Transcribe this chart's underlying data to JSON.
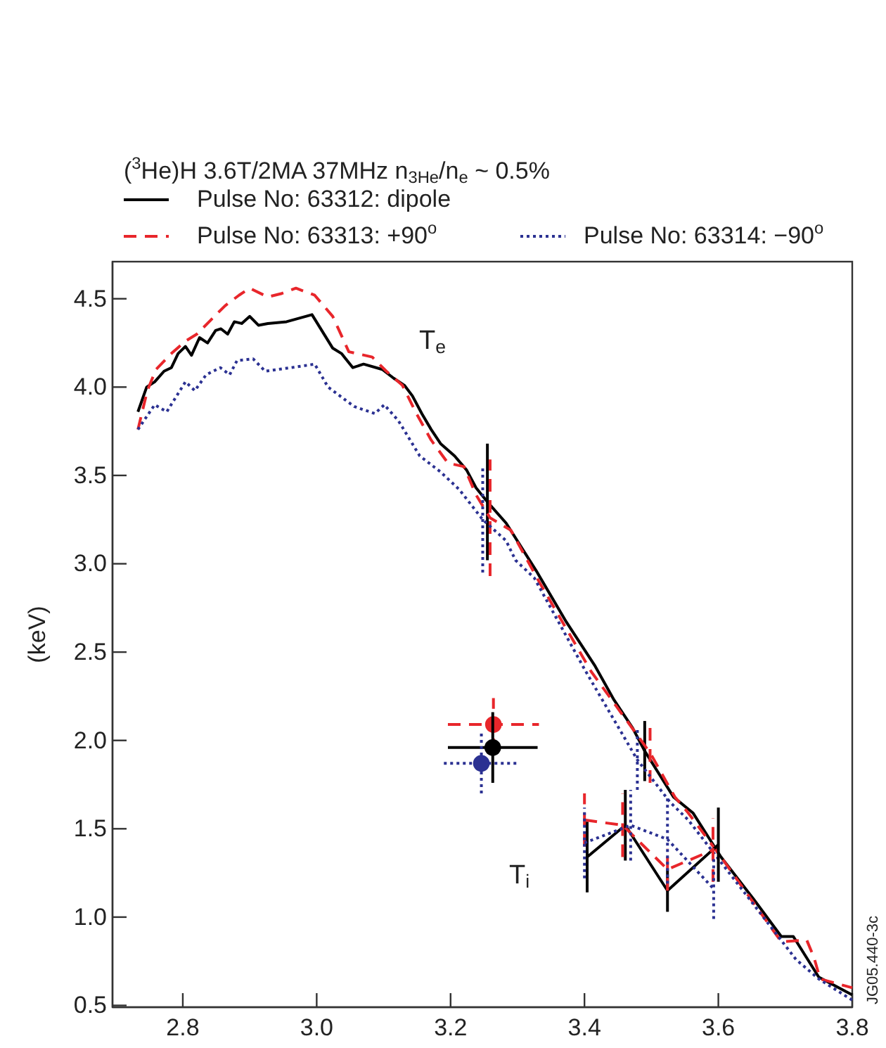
{
  "chart_data": {
    "type": "line",
    "title": "($^{3}$He)H 3.6T/2MA 37MHz n$_{3He}$/n$_{e}$ ~ 0.5%",
    "ylabel": "(keV)",
    "legend": "top",
    "xlim": [
      2.695,
      3.8
    ],
    "ylim": [
      0.49,
      4.71
    ],
    "xticks": [
      2.8,
      {
        "value": 3,
        "label": "3.0"
      },
      3.2,
      3.4,
      3.6,
      3.8
    ],
    "yticks": [
      0.5,
      {
        "value": 1,
        "label": "1.0"
      },
      1.5,
      {
        "value": 2,
        "label": "2.0"
      },
      2.5,
      {
        "value": 3,
        "label": "3.0"
      },
      3.5,
      {
        "value": 4,
        "label": "4.0"
      },
      4.5
    ],
    "annotations": [
      "T$_{e}$",
      "T$_{i}$",
      "JG05.440-3c"
    ],
    "series": [
      {
        "name": "Pulse No: 63312: dipole",
        "color": "#000000",
        "line_style": "solid",
        "x": [
          2.733,
          2.746,
          2.758,
          2.772,
          2.783,
          2.793,
          2.804,
          2.813,
          2.825,
          2.837,
          2.849,
          2.857,
          2.867,
          2.877,
          2.888,
          2.9,
          2.913,
          2.927,
          2.955,
          2.993,
          3.024,
          3.037,
          3.054,
          3.07,
          3.098,
          3.115,
          3.131,
          3.143,
          3.157,
          3.171,
          3.185,
          3.206,
          3.224,
          3.238,
          3.255,
          3.283,
          3.328,
          3.373,
          3.416,
          3.444,
          3.472,
          3.49,
          3.533,
          3.562,
          3.604,
          3.653,
          3.694,
          3.712,
          3.75,
          3.8
        ],
        "values": [
          3.86,
          4.0,
          4.03,
          4.09,
          4.11,
          4.19,
          4.23,
          4.18,
          4.28,
          4.25,
          4.32,
          4.33,
          4.3,
          4.37,
          4.36,
          4.4,
          4.35,
          4.36,
          4.37,
          4.41,
          4.22,
          4.19,
          4.11,
          4.13,
          4.1,
          4.05,
          4.01,
          3.95,
          3.85,
          3.76,
          3.68,
          3.61,
          3.53,
          3.43,
          3.35,
          3.23,
          2.96,
          2.67,
          2.42,
          2.23,
          2.07,
          1.94,
          1.68,
          1.59,
          1.34,
          1.1,
          0.89,
          0.89,
          0.66,
          0.56
        ],
        "errors": [
          null,
          null,
          null,
          null,
          null,
          null,
          null,
          null,
          null,
          null,
          null,
          null,
          null,
          null,
          null,
          null,
          null,
          null,
          null,
          null,
          null,
          null,
          null,
          null,
          null,
          null,
          null,
          null,
          null,
          null,
          null,
          null,
          null,
          null,
          0.33,
          null,
          null,
          null,
          null,
          null,
          null,
          0.17,
          null,
          null,
          null,
          null,
          null,
          null,
          null,
          null
        ]
      },
      {
        "name": "Pulse No: 63313: +90$^{o}$",
        "color": "#e8262b",
        "line_style": "dashed",
        "x": [
          2.733,
          2.747,
          2.76,
          2.783,
          2.804,
          2.821,
          2.842,
          2.863,
          2.884,
          2.9,
          2.927,
          2.948,
          2.969,
          2.997,
          3.024,
          3.048,
          3.083,
          3.104,
          3.128,
          3.149,
          3.171,
          3.196,
          3.22,
          3.238,
          3.259,
          3.29,
          3.332,
          3.41,
          3.498,
          3.535,
          3.555,
          3.604,
          3.694,
          3.732,
          3.743,
          3.752,
          3.8
        ],
        "values": [
          3.76,
          3.98,
          4.1,
          4.19,
          4.26,
          4.3,
          4.38,
          4.46,
          4.52,
          4.56,
          4.51,
          4.53,
          4.56,
          4.52,
          4.4,
          4.2,
          4.17,
          4.09,
          4.01,
          3.85,
          3.7,
          3.57,
          3.55,
          3.39,
          3.26,
          3.19,
          2.9,
          2.39,
          1.93,
          1.68,
          1.59,
          1.34,
          0.86,
          0.87,
          0.77,
          0.65,
          0.6
        ],
        "errors": [
          null,
          null,
          null,
          null,
          null,
          null,
          null,
          null,
          null,
          null,
          null,
          null,
          null,
          null,
          null,
          null,
          null,
          null,
          null,
          null,
          null,
          null,
          null,
          null,
          0.33,
          null,
          null,
          null,
          0.17,
          null,
          null,
          null,
          null,
          null,
          null,
          null,
          null
        ]
      },
      {
        "name": "Pulse No: 63314: −90$^{o}$",
        "color": "#2b3192",
        "line_style": "dotted",
        "x": [
          2.733,
          2.758,
          2.776,
          2.804,
          2.818,
          2.835,
          2.856,
          2.87,
          2.881,
          2.905,
          2.923,
          2.962,
          2.997,
          3.017,
          3.056,
          3.087,
          3.101,
          3.122,
          3.154,
          3.185,
          3.213,
          3.248,
          3.283,
          3.297,
          3.325,
          3.402,
          3.479,
          3.528,
          3.555,
          3.653,
          3.716,
          3.75,
          3.8
        ],
        "values": [
          3.76,
          3.9,
          3.86,
          4.03,
          3.98,
          4.07,
          4.11,
          4.07,
          4.15,
          4.16,
          4.09,
          4.11,
          4.13,
          4.0,
          3.89,
          3.85,
          3.9,
          3.81,
          3.61,
          3.52,
          3.42,
          3.25,
          3.13,
          3.02,
          2.92,
          2.39,
          1.89,
          1.65,
          1.55,
          1.07,
          0.76,
          0.65,
          0.53
        ],
        "errors": [
          null,
          null,
          null,
          null,
          null,
          null,
          null,
          null,
          null,
          null,
          null,
          null,
          null,
          null,
          null,
          null,
          null,
          null,
          null,
          null,
          null,
          0.3,
          null,
          null,
          null,
          null,
          0.17,
          null,
          null,
          null,
          null,
          null,
          null
        ]
      },
      {
        "type": "line",
        "color": "#000000",
        "line_style": "solid",
        "x": [
          3.404,
          3.461,
          3.524,
          3.6
        ],
        "values": [
          1.34,
          1.52,
          1.15,
          1.41
        ],
        "errors": [
          0.2,
          0.2,
          0.12,
          0.21
        ]
      },
      {
        "type": "line",
        "color": "#e8262b",
        "line_style": "dashed",
        "x": [
          3.4,
          3.457,
          3.524,
          3.592
        ],
        "values": [
          1.55,
          1.52,
          1.27,
          1.38
        ],
        "errors": [
          0.15,
          0.18,
          0.12,
          0.18
        ]
      },
      {
        "type": "line",
        "color": "#2b3192",
        "line_style": "dotted",
        "x": [
          3.4,
          3.469,
          3.524,
          3.593
        ],
        "values": [
          1.42,
          1.52,
          1.44,
          1.16
        ],
        "errors": [
          0.2,
          0.2,
          0.25,
          0.17
        ]
      },
      {
        "type": "scatter",
        "marker": "circle",
        "color": "#e8262b",
        "line_style": "dashed",
        "x": [
          3.264
        ],
        "values": [
          2.09
        ],
        "errors": [
          0.15
        ],
        "xerrors": [
          0.068
        ]
      },
      {
        "type": "scatter",
        "marker": "circle",
        "color": "#000000",
        "line_style": "solid",
        "x": [
          3.263
        ],
        "values": [
          1.96
        ],
        "errors": [
          0.2
        ],
        "xerrors": [
          0.067
        ]
      },
      {
        "type": "scatter",
        "marker": "circle",
        "color": "#2b3192",
        "line_style": "dotted",
        "x": [
          3.246
        ],
        "values": [
          1.87
        ],
        "errors": [
          0.17
        ],
        "xerrors": [
          0.056
        ]
      }
    ]
  }
}
